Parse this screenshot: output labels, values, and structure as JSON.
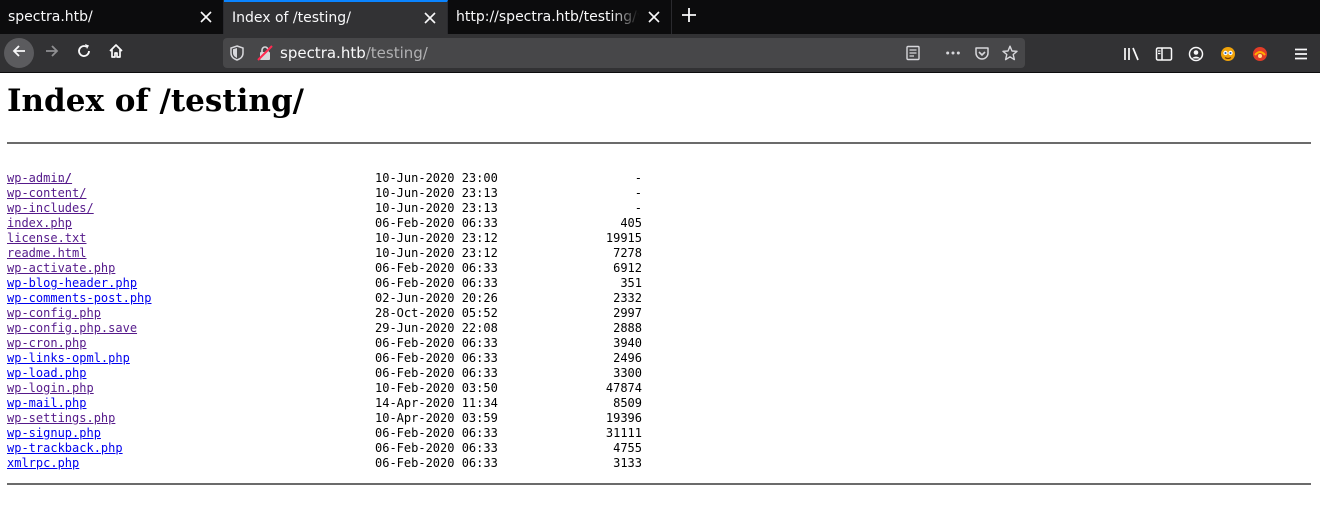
{
  "tabs": [
    {
      "title": "spectra.htb/",
      "active": false
    },
    {
      "title": "Index of /testing/",
      "active": true
    },
    {
      "title": "http://spectra.htb/testing/wp",
      "active": false
    }
  ],
  "url": {
    "host": "spectra.htb",
    "path": "/testing/"
  },
  "page": {
    "heading": "Index of /testing/",
    "parent_link": "../",
    "entries": [
      {
        "name": "wp-admin/",
        "date": "10-Jun-2020 23:00",
        "size": "-",
        "visited": true
      },
      {
        "name": "wp-content/",
        "date": "10-Jun-2020 23:13",
        "size": "-",
        "visited": true
      },
      {
        "name": "wp-includes/",
        "date": "10-Jun-2020 23:13",
        "size": "-",
        "visited": true
      },
      {
        "name": "index.php",
        "date": "06-Feb-2020 06:33",
        "size": "405",
        "visited": true
      },
      {
        "name": "license.txt",
        "date": "10-Jun-2020 23:12",
        "size": "19915",
        "visited": true
      },
      {
        "name": "readme.html",
        "date": "10-Jun-2020 23:12",
        "size": "7278",
        "visited": true
      },
      {
        "name": "wp-activate.php",
        "date": "06-Feb-2020 06:33",
        "size": "6912",
        "visited": true
      },
      {
        "name": "wp-blog-header.php",
        "date": "06-Feb-2020 06:33",
        "size": "351",
        "visited": false
      },
      {
        "name": "wp-comments-post.php",
        "date": "02-Jun-2020 20:26",
        "size": "2332",
        "visited": false
      },
      {
        "name": "wp-config.php",
        "date": "28-Oct-2020 05:52",
        "size": "2997",
        "visited": true
      },
      {
        "name": "wp-config.php.save",
        "date": "29-Jun-2020 22:08",
        "size": "2888",
        "visited": true
      },
      {
        "name": "wp-cron.php",
        "date": "06-Feb-2020 06:33",
        "size": "3940",
        "visited": true
      },
      {
        "name": "wp-links-opml.php",
        "date": "06-Feb-2020 06:33",
        "size": "2496",
        "visited": false
      },
      {
        "name": "wp-load.php",
        "date": "06-Feb-2020 06:33",
        "size": "3300",
        "visited": false
      },
      {
        "name": "wp-login.php",
        "date": "10-Feb-2020 03:50",
        "size": "47874",
        "visited": true
      },
      {
        "name": "wp-mail.php",
        "date": "14-Apr-2020 11:34",
        "size": "8509",
        "visited": false
      },
      {
        "name": "wp-settings.php",
        "date": "10-Apr-2020 03:59",
        "size": "19396",
        "visited": true
      },
      {
        "name": "wp-signup.php",
        "date": "06-Feb-2020 06:33",
        "size": "31111",
        "visited": false
      },
      {
        "name": "wp-trackback.php",
        "date": "06-Feb-2020 06:33",
        "size": "4755",
        "visited": false
      },
      {
        "name": "xmlrpc.php",
        "date": "06-Feb-2020 06:33",
        "size": "3133",
        "visited": false
      }
    ]
  },
  "icons": {
    "tab_close": "close-icon",
    "new_tab": "plus-icon",
    "back": "back-arrow-icon",
    "forward": "forward-arrow-icon",
    "reload": "reload-icon",
    "home": "home-icon",
    "site_info": "shield-icon",
    "connection": "insecure-lock-icon",
    "reader_view": "reader-view-icon",
    "page_actions": "more-icon",
    "pocket": "pocket-icon",
    "bookmark": "star-icon",
    "library": "library-icon",
    "sidebar": "sidebar-icon",
    "account": "account-icon",
    "extension_1": "extension-icon",
    "extension_2": "extension-icon",
    "menu": "hamburger-menu-icon"
  },
  "colors": {
    "accent": "#0a84ff",
    "link": "#0000ee",
    "visited_link": "#551a8b",
    "toolbar": "#323234",
    "tabstrip": "#0c0c0d"
  }
}
